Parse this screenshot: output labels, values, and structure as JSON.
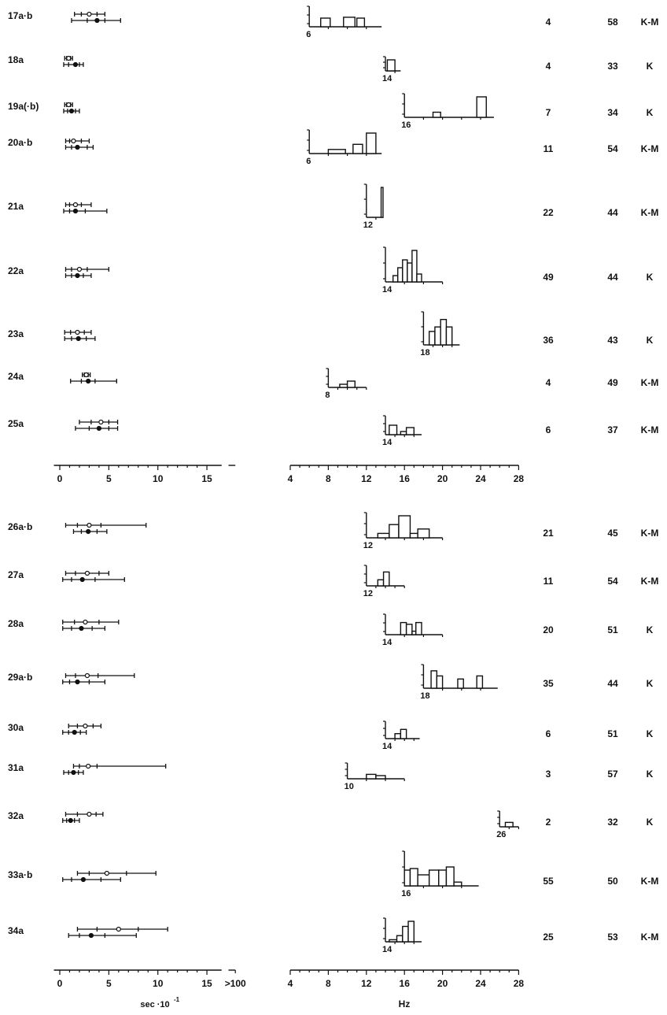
{
  "chart_data": {
    "type": "bar",
    "panels": [
      {
        "rows": [
          {
            "label": "17a·b",
            "intervals": [
              {
                "kind": "open",
                "min": 1.5,
                "q1": 2.2,
                "med": 3.0,
                "q3": 3.8,
                "max": 4.6
              },
              {
                "kind": "filled",
                "min": 1.2,
                "q1": 2.8,
                "med": 3.8,
                "q3": 4.6,
                "max": 6.2
              }
            ],
            "hist": {
              "origin": 6,
              "end": 13.6,
              "bars": [
                [
                  7.2,
                  8.2,
                  0.5
                ],
                [
                  9.6,
                  10.8,
                  0.55
                ],
                [
                  11.0,
                  11.8,
                  0.5
                ]
              ]
            },
            "n": "4",
            "age": "58",
            "group": "K-M"
          },
          {
            "label": "18a",
            "intervals": [
              {
                "kind": "open",
                "min": 0.5,
                "q1": 0.7,
                "med": 0.9,
                "q3": 1.1,
                "max": 1.3
              },
              {
                "kind": "filled",
                "min": 0.4,
                "q1": 0.9,
                "med": 1.6,
                "q3": 2.0,
                "max": 2.4
              }
            ],
            "hist": {
              "origin": 14,
              "end": 15.6,
              "bars": [
                [
                  14.2,
                  15.0,
                  1
                ]
              ]
            },
            "n": "4",
            "age": "33",
            "group": "K"
          },
          {
            "label": "19a(·b)",
            "intervals": [
              {
                "kind": "open",
                "min": 0.5,
                "q1": 0.7,
                "med": 0.9,
                "q3": 1.1,
                "max": 1.3
              },
              {
                "kind": "filled",
                "min": 0.4,
                "q1": 0.8,
                "med": 1.2,
                "q3": 1.6,
                "max": 2.0
              }
            ],
            "hist": {
              "origin": 16,
              "end": 25.4,
              "bars": [
                [
                  19.0,
                  19.8,
                  0.25
                ],
                [
                  23.6,
                  24.6,
                  1
                ]
              ]
            },
            "n": "7",
            "age": "34",
            "group": "K"
          },
          {
            "label": "20a·b",
            "intervals": [
              {
                "kind": "open",
                "min": 0.6,
                "q1": 1.0,
                "med": 1.4,
                "q3": 2.2,
                "max": 3.0
              },
              {
                "kind": "filled",
                "min": 0.6,
                "q1": 1.2,
                "med": 1.8,
                "q3": 2.8,
                "max": 3.4
              }
            ],
            "hist": {
              "origin": 6,
              "end": 13.6,
              "bars": [
                [
                  8.0,
                  9.8,
                  0.2
                ],
                [
                  10.6,
                  11.6,
                  0.45
                ],
                [
                  12.0,
                  13.0,
                  1
                ]
              ]
            },
            "n": "11",
            "age": "54",
            "group": "K-M"
          },
          {
            "label": "21a",
            "intervals": [
              {
                "kind": "open",
                "min": 0.6,
                "q1": 1.0,
                "med": 1.6,
                "q3": 2.2,
                "max": 3.2
              },
              {
                "kind": "filled",
                "min": 0.4,
                "q1": 1.0,
                "med": 1.6,
                "q3": 2.6,
                "max": 4.8
              }
            ],
            "hist": {
              "origin": 12,
              "end": 13.8,
              "bars": [
                [
                  13.55,
                  13.75,
                  1
                ]
              ]
            },
            "n": "22",
            "age": "44",
            "group": "K-M"
          },
          {
            "label": "22a",
            "intervals": [
              {
                "kind": "open",
                "min": 0.6,
                "q1": 1.2,
                "med": 2.0,
                "q3": 2.8,
                "max": 5.0
              },
              {
                "kind": "filled",
                "min": 0.6,
                "q1": 1.2,
                "med": 1.8,
                "q3": 2.4,
                "max": 3.2
              }
            ],
            "hist": {
              "origin": 14,
              "end": 20,
              "bars": [
                [
                  14.8,
                  15.3,
                  0.2
                ],
                [
                  15.3,
                  15.8,
                  0.45
                ],
                [
                  15.8,
                  16.3,
                  0.7
                ],
                [
                  16.3,
                  16.8,
                  0.6
                ],
                [
                  16.8,
                  17.3,
                  1.0
                ],
                [
                  17.3,
                  17.8,
                  0.25
                ]
              ]
            },
            "n": "49",
            "age": "44",
            "group": "K"
          },
          {
            "label": "23a",
            "intervals": [
              {
                "kind": "open",
                "min": 0.5,
                "q1": 1.1,
                "med": 1.8,
                "q3": 2.5,
                "max": 3.2
              },
              {
                "kind": "filled",
                "min": 0.5,
                "q1": 1.2,
                "med": 1.9,
                "q3": 2.7,
                "max": 3.6
              }
            ],
            "hist": {
              "origin": 18,
              "end": 21.8,
              "bars": [
                [
                  18.6,
                  19.2,
                  0.45
                ],
                [
                  19.2,
                  19.8,
                  0.6
                ],
                [
                  19.8,
                  20.4,
                  0.85
                ],
                [
                  20.4,
                  21.0,
                  0.6
                ]
              ]
            },
            "n": "36",
            "age": "43",
            "group": "K"
          },
          {
            "label": "24a",
            "intervals": [
              {
                "kind": "open",
                "min": 2.3,
                "q1": 2.5,
                "med": 2.7,
                "q3": 2.9,
                "max": 3.1
              },
              {
                "kind": "filled",
                "min": 1.1,
                "q1": 2.2,
                "med": 2.9,
                "q3": 3.6,
                "max": 5.8
              }
            ],
            "hist": {
              "origin": 8,
              "end": 12,
              "bars": [
                [
                  9.2,
                  10.0,
                  0.2
                ],
                [
                  10.0,
                  10.8,
                  0.4
                ]
              ]
            },
            "n": "4",
            "age": "49",
            "group": "K-M"
          },
          {
            "label": "25a",
            "intervals": [
              {
                "kind": "open",
                "min": 2.0,
                "q1": 3.2,
                "med": 4.2,
                "q3": 5.0,
                "max": 5.9
              },
              {
                "kind": "filled",
                "min": 1.6,
                "q1": 3.0,
                "med": 4.0,
                "q3": 5.0,
                "max": 5.9
              }
            ],
            "hist": {
              "origin": 14,
              "end": 17.8,
              "bars": [
                [
                  14.4,
                  15.2,
                  0.6
                ],
                [
                  15.6,
                  16.2,
                  0.2
                ],
                [
                  16.2,
                  17.0,
                  0.45
                ]
              ]
            },
            "n": "6",
            "age": "37",
            "group": "K-M"
          }
        ]
      },
      {
        "rows": [
          {
            "label": "26a·b",
            "intervals": [
              {
                "kind": "open",
                "min": 0.6,
                "q1": 1.8,
                "med": 3.0,
                "q3": 4.2,
                "max": 8.8
              },
              {
                "kind": "filled",
                "min": 1.4,
                "q1": 2.2,
                "med": 2.9,
                "q3": 3.8,
                "max": 4.8
              }
            ],
            "hist": {
              "origin": 12,
              "end": 20,
              "bars": [
                [
                  13.2,
                  14.4,
                  0.2
                ],
                [
                  14.4,
                  15.4,
                  0.6
                ],
                [
                  15.4,
                  16.6,
                  1.0
                ],
                [
                  16.6,
                  17.4,
                  0.2
                ],
                [
                  17.4,
                  18.6,
                  0.4
                ]
              ]
            },
            "n": "21",
            "age": "45",
            "group": "K-M"
          },
          {
            "label": "27a",
            "intervals": [
              {
                "kind": "open",
                "min": 0.6,
                "q1": 1.6,
                "med": 2.8,
                "q3": 4.0,
                "max": 5.0
              },
              {
                "kind": "filled",
                "min": 0.3,
                "q1": 1.2,
                "med": 2.3,
                "q3": 3.6,
                "max": 6.6
              }
            ],
            "hist": {
              "origin": 12,
              "end": 16,
              "bars": [
                [
                  13.2,
                  13.8,
                  0.35
                ],
                [
                  13.8,
                  14.4,
                  0.8
                ]
              ]
            },
            "n": "11",
            "age": "54",
            "group": "K-M"
          },
          {
            "label": "28a",
            "intervals": [
              {
                "kind": "open",
                "min": 0.3,
                "q1": 1.5,
                "med": 2.6,
                "q3": 4.0,
                "max": 6.0
              },
              {
                "kind": "filled",
                "min": 0.3,
                "q1": 1.2,
                "med": 2.2,
                "q3": 3.3,
                "max": 4.6
              }
            ],
            "hist": {
              "origin": 14,
              "end": 20,
              "bars": [
                [
                  15.6,
                  16.2,
                  0.7
                ],
                [
                  16.2,
                  16.8,
                  0.6
                ],
                [
                  16.8,
                  17.2,
                  0.2
                ],
                [
                  17.2,
                  17.8,
                  0.7
                ]
              ]
            },
            "n": "20",
            "age": "51",
            "group": "K"
          },
          {
            "label": "29a·b",
            "intervals": [
              {
                "kind": "open",
                "min": 0.6,
                "q1": 1.6,
                "med": 2.8,
                "q3": 3.9,
                "max": 7.6
              },
              {
                "kind": "filled",
                "min": 0.3,
                "q1": 1.0,
                "med": 1.8,
                "q3": 3.0,
                "max": 4.6
              }
            ],
            "hist": {
              "origin": 18,
              "end": 25.8,
              "bars": [
                [
                  18.8,
                  19.4,
                  0.85
                ],
                [
                  19.4,
                  20.0,
                  0.6
                ],
                [
                  21.6,
                  22.2,
                  0.45
                ],
                [
                  23.6,
                  24.2,
                  0.6
                ]
              ]
            },
            "n": "35",
            "age": "44",
            "group": "K"
          },
          {
            "label": "30a",
            "intervals": [
              {
                "kind": "open",
                "min": 0.9,
                "q1": 1.8,
                "med": 2.6,
                "q3": 3.4,
                "max": 4.2
              },
              {
                "kind": "filled",
                "min": 0.3,
                "q1": 0.9,
                "med": 1.5,
                "q3": 2.1,
                "max": 2.7
              }
            ],
            "hist": {
              "origin": 14,
              "end": 17.6,
              "bars": [
                [
                  15.0,
                  15.6,
                  0.35
                ],
                [
                  15.6,
                  16.2,
                  0.65
                ]
              ]
            },
            "n": "6",
            "age": "51",
            "group": "K"
          },
          {
            "label": "31a",
            "intervals": [
              {
                "kind": "open",
                "min": 1.4,
                "q1": 2.0,
                "med": 2.9,
                "q3": 3.8,
                "max": 10.8
              },
              {
                "kind": "filled",
                "min": 0.4,
                "q1": 0.9,
                "med": 1.4,
                "q3": 1.9,
                "max": 2.4
              }
            ],
            "hist": {
              "origin": 10,
              "end": 16,
              "bars": [
                [
                  12.0,
                  13.0,
                  0.35
                ],
                [
                  13.0,
                  14.0,
                  0.25
                ]
              ]
            },
            "n": "3",
            "age": "57",
            "group": "K"
          },
          {
            "label": "32a",
            "intervals": [
              {
                "kind": "open",
                "min": 0.6,
                "q1": 1.8,
                "med": 3.0,
                "q3": 3.7,
                "max": 4.4
              },
              {
                "kind": "filled",
                "min": 0.3,
                "q1": 0.7,
                "med": 1.1,
                "q3": 1.5,
                "max": 2.0
              }
            ],
            "hist": {
              "origin": 26,
              "end": 28,
              "bars": [
                [
                  26.6,
                  27.4,
                  0.35
                ]
              ]
            },
            "n": "2",
            "age": "32",
            "group": "K"
          },
          {
            "label": "33a·b",
            "intervals": [
              {
                "kind": "open",
                "min": 1.8,
                "q1": 3.0,
                "med": 4.8,
                "q3": 6.8,
                "max": 9.8
              },
              {
                "kind": "filled",
                "min": 0.3,
                "q1": 1.2,
                "med": 2.4,
                "q3": 4.2,
                "max": 6.2
              }
            ],
            "hist": {
              "origin": 16,
              "end": 23.8,
              "bars": [
                [
                  16.0,
                  16.6,
                  0.5
                ],
                [
                  16.6,
                  17.4,
                  0.55
                ],
                [
                  17.4,
                  18.6,
                  0.35
                ],
                [
                  18.6,
                  19.6,
                  0.5
                ],
                [
                  19.6,
                  20.4,
                  0.5
                ],
                [
                  20.4,
                  21.2,
                  0.6
                ],
                [
                  21.2,
                  22.0,
                  0.12
                ]
              ]
            },
            "n": "55",
            "age": "50",
            "group": "K-M"
          },
          {
            "label": "34a",
            "intervals": [
              {
                "kind": "open",
                "min": 1.8,
                "q1": 3.8,
                "med": 6.0,
                "q3": 8.0,
                "max": 11.0
              },
              {
                "kind": "filled",
                "min": 0.9,
                "q1": 2.0,
                "med": 3.2,
                "q3": 4.6,
                "max": 7.8
              }
            ],
            "hist": {
              "origin": 14,
              "end": 17.8,
              "bars": [
                [
                  14.4,
                  15.2,
                  0.1
                ],
                [
                  15.2,
                  15.8,
                  0.3
                ],
                [
                  15.8,
                  16.4,
                  0.75
                ],
                [
                  16.4,
                  17.0,
                  1.0
                ]
              ]
            },
            "n": "25",
            "age": "53",
            "group": "K-M"
          }
        ]
      }
    ],
    "left_axis": {
      "ticks": [
        0,
        5,
        10,
        15
      ],
      "tick_labels": [
        "0",
        "5",
        "10",
        "15"
      ],
      "overflow_label": ">100",
      "xlabel": "sec ·10",
      "xlabel_exp": "-1"
    },
    "right_axis": {
      "range": [
        4,
        28
      ],
      "ticks": [
        4,
        8,
        12,
        16,
        20,
        24,
        28
      ],
      "tick_labels": [
        "4",
        "8",
        "12",
        "16",
        "20",
        "24",
        "28"
      ],
      "xlabel": "Hz"
    }
  }
}
